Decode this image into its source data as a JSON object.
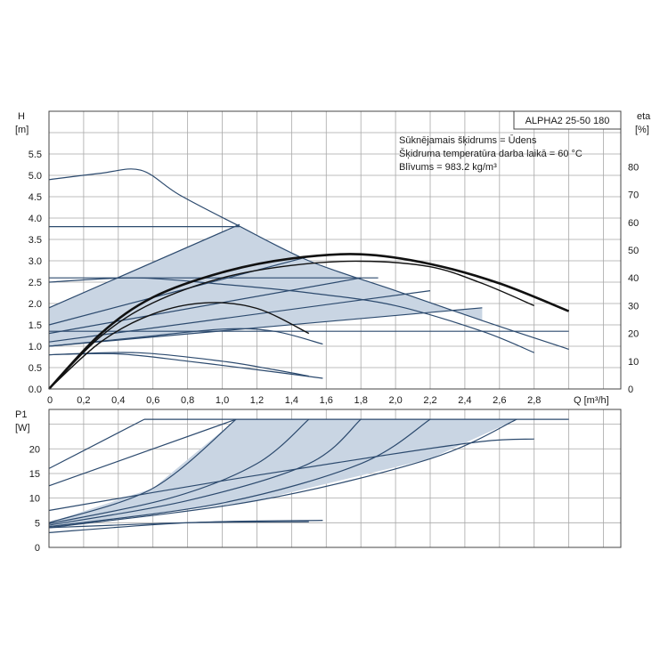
{
  "chart_data": [
    {
      "type": "line",
      "title": "ALPHA2 25-50 180",
      "annotations": [
        "Sūknējamais šķidrums = Ūdens",
        "Šķidruma temperatūra darba laikā = 60 °C",
        "Blīvums = 983.2 kg/m³"
      ],
      "ylabel_left": [
        "H",
        "[m]"
      ],
      "ylabel_right": [
        "eta",
        "[%]"
      ],
      "xlabel": "Q [m³/h]",
      "xlim": [
        0,
        3.3
      ],
      "ylim_left": [
        0,
        6.5
      ],
      "ylim_right": [
        0,
        100
      ],
      "x_ticks": [
        "0",
        "0,2",
        "0,4",
        "0,6",
        "0,8",
        "1,0",
        "1,2",
        "1,4",
        "1,6",
        "1,8",
        "2,0",
        "2,2",
        "2,4",
        "2,6",
        "2,8"
      ],
      "x_tick_values": [
        0,
        0.2,
        0.4,
        0.6,
        0.8,
        1.0,
        1.2,
        1.4,
        1.6,
        1.8,
        2.0,
        2.2,
        2.4,
        2.6,
        2.8
      ],
      "y_ticks_left": [
        "0.0",
        "0.5",
        "1.0",
        "1.5",
        "2.0",
        "2.5",
        "3.0",
        "3.5",
        "4.0",
        "4.5",
        "5.0",
        "5.5"
      ],
      "y_tick_values_left": [
        0,
        0.5,
        1,
        1.5,
        2,
        2.5,
        3,
        3.5,
        4,
        4.5,
        5,
        5.5
      ],
      "y_ticks_right": [
        "0",
        "10",
        "20",
        "30",
        "40",
        "50",
        "60",
        "70",
        "80"
      ],
      "y_tick_values_right": [
        0,
        10,
        20,
        30,
        40,
        50,
        60,
        70,
        80
      ],
      "series": [
        {
          "name": "max-curve",
          "axis": "H",
          "x": [
            0,
            0.3,
            0.53,
            0.75,
            1.08,
            1.5,
            2.0,
            2.5,
            3.0
          ],
          "y": [
            4.9,
            5.05,
            5.12,
            4.55,
            3.85,
            3.0,
            2.3,
            1.6,
            0.93
          ]
        },
        {
          "name": "constant-pressure-high",
          "axis": "H",
          "x": [
            0,
            1.1
          ],
          "y": [
            3.8,
            3.8
          ]
        },
        {
          "name": "constant-pressure-mid",
          "axis": "H",
          "x": [
            0,
            1.9
          ],
          "y": [
            2.6,
            2.6
          ]
        },
        {
          "name": "constant-pressure-low",
          "axis": "H",
          "x": [
            0,
            3.0
          ],
          "y": [
            1.35,
            1.35
          ]
        },
        {
          "name": "proportional-pressure-1",
          "axis": "H",
          "x": [
            0,
            1.1
          ],
          "y": [
            1.9,
            3.85
          ]
        },
        {
          "name": "proportional-pressure-2",
          "axis": "H",
          "x": [
            0,
            1.5
          ],
          "y": [
            1.5,
            3.1
          ]
        },
        {
          "name": "proportional-pressure-3",
          "axis": "H",
          "x": [
            0,
            1.8
          ],
          "y": [
            1.3,
            2.6
          ]
        },
        {
          "name": "proportional-pressure-4",
          "axis": "H",
          "x": [
            0,
            2.2
          ],
          "y": [
            1.1,
            2.3
          ]
        },
        {
          "name": "proportional-pressure-5",
          "axis": "H",
          "x": [
            0,
            2.5
          ],
          "y": [
            1.0,
            1.9
          ]
        },
        {
          "name": "speed-curve-mid",
          "axis": "H",
          "x": [
            0,
            0.5,
            1.0,
            1.5,
            2.0,
            2.5,
            2.8
          ],
          "y": [
            2.5,
            2.6,
            2.45,
            2.25,
            1.95,
            1.35,
            0.85
          ]
        },
        {
          "name": "speed-curve-low-a",
          "axis": "H",
          "x": [
            0,
            0.5,
            1.0,
            1.3,
            1.58
          ],
          "y": [
            1.0,
            1.2,
            1.4,
            1.35,
            1.05
          ]
        },
        {
          "name": "speed-curve-low-b",
          "axis": "H",
          "x": [
            0,
            0.5,
            1.0,
            1.3,
            1.5
          ],
          "y": [
            0.8,
            0.85,
            0.65,
            0.45,
            0.3
          ]
        },
        {
          "name": "speed-curve-min",
          "axis": "H",
          "x": [
            0,
            0.4,
            0.8,
            1.2,
            1.58
          ],
          "y": [
            0.8,
            0.82,
            0.65,
            0.45,
            0.25
          ]
        },
        {
          "name": "efficiency-max",
          "axis": "eta",
          "x": [
            0,
            0.3,
            0.6,
            1.0,
            1.4,
            1.8,
            2.2,
            2.6,
            3.0
          ],
          "y": [
            0,
            20,
            33,
            42,
            47,
            48.5,
            45,
            38,
            28
          ]
        },
        {
          "name": "efficiency-mid",
          "axis": "eta",
          "x": [
            0,
            0.3,
            0.6,
            1.0,
            1.4,
            1.8,
            2.2,
            2.5,
            2.8
          ],
          "y": [
            0,
            19,
            31,
            40,
            44.5,
            46,
            44,
            38,
            30
          ]
        },
        {
          "name": "efficiency-low",
          "axis": "eta",
          "x": [
            0,
            0.3,
            0.6,
            0.9,
            1.2,
            1.5
          ],
          "y": [
            0,
            17,
            27,
            31,
            29,
            20
          ]
        }
      ]
    },
    {
      "type": "line",
      "ylabel": [
        "P1",
        "[W]"
      ],
      "xlim": [
        0,
        3.3
      ],
      "ylim": [
        0,
        28
      ],
      "y_ticks": [
        "0",
        "5",
        "10",
        "15",
        "20"
      ],
      "y_tick_values": [
        0,
        5,
        10,
        15,
        20
      ],
      "series": [
        {
          "name": "max-power-line",
          "x": [
            0.55,
            3.0
          ],
          "y": [
            26,
            26
          ]
        },
        {
          "name": "power-max-curve",
          "x": [
            0,
            0.55
          ],
          "y": [
            16,
            26
          ]
        },
        {
          "name": "power-upper",
          "x": [
            0,
            1.08
          ],
          "y": [
            12.5,
            26
          ]
        },
        {
          "name": "power-envelope-low",
          "x": [
            0,
            1.0,
            1.9,
            2.5,
            2.8
          ],
          "y": [
            7.5,
            13.5,
            18.5,
            21.5,
            22
          ]
        },
        {
          "name": "power-shaded-1",
          "x": [
            0,
            0.6,
            1.08
          ],
          "y": [
            5.0,
            12.0,
            26
          ]
        },
        {
          "name": "power-shaded-2",
          "x": [
            0,
            0.7,
            1.2,
            1.5
          ],
          "y": [
            4.8,
            10.0,
            17.0,
            26
          ]
        },
        {
          "name": "power-shaded-3",
          "x": [
            0,
            0.8,
            1.5,
            1.8
          ],
          "y": [
            4.5,
            9.5,
            17.0,
            26
          ]
        },
        {
          "name": "power-shaded-4",
          "x": [
            0,
            1.0,
            1.8,
            2.2
          ],
          "y": [
            4.2,
            9.0,
            17.0,
            26
          ]
        },
        {
          "name": "power-shaded-5",
          "x": [
            0,
            1.2,
            2.2,
            2.7
          ],
          "y": [
            4.0,
            9.5,
            18.0,
            26
          ]
        },
        {
          "name": "power-min",
          "x": [
            0,
            0.8,
            1.58
          ],
          "y": [
            3.0,
            5.0,
            5.5
          ]
        },
        {
          "name": "power-min-2",
          "x": [
            0,
            0.8,
            1.5
          ],
          "y": [
            4.0,
            5.0,
            5.2
          ]
        }
      ]
    }
  ]
}
